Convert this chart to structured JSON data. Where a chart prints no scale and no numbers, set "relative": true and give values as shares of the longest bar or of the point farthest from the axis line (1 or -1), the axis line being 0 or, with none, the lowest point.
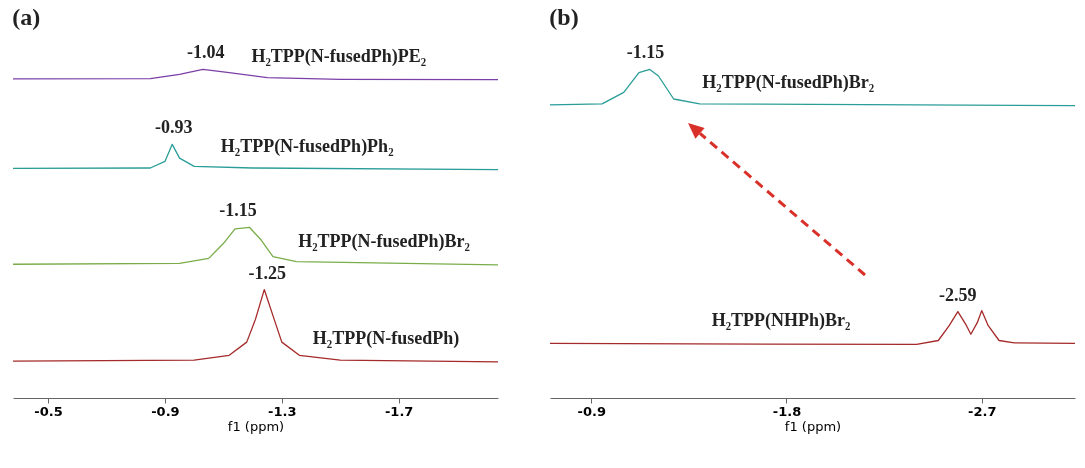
{
  "chart_data": [
    {
      "type": "line",
      "title": "(a)",
      "xlabel": "f1 (ppm)",
      "relative": true,
      "xlim": [
        -0.38,
        -2.04
      ],
      "xticks": [
        -0.5,
        -0.9,
        -1.3,
        -1.7
      ],
      "tick_labels": "x",
      "grid": false,
      "legend": false,
      "line_style": "solid",
      "marker": "none",
      "series": [
        {
          "name": "H₂TPP(N-fusedPh)PE₂",
          "color": "#7b3fa8",
          "x": [
            -0.38,
            -0.85,
            -0.95,
            -1.03,
            -1.12,
            -1.25,
            -1.5,
            -2.04
          ],
          "values": [
            0.971,
            0.972,
            0.985,
            1.0,
            0.99,
            0.975,
            0.97,
            0.969
          ]
        },
        {
          "name": "H₂TPP(N-fusedPh)Ph₂",
          "color": "#2a9d98",
          "x": [
            -0.38,
            -0.85,
            -0.9,
            -0.925,
            -0.95,
            -1.0,
            -1.2,
            -2.04
          ],
          "values": [
            0.699,
            0.7,
            0.72,
            0.772,
            0.73,
            0.705,
            0.7,
            0.695
          ]
        },
        {
          "name": "H₂TPP(N-fusedPh)Br₂",
          "color": "#7aad4a",
          "x": [
            -0.38,
            -0.95,
            -1.05,
            -1.1,
            -1.14,
            -1.19,
            -1.23,
            -1.27,
            -1.35,
            -2.04
          ],
          "values": [
            0.407,
            0.41,
            0.425,
            0.47,
            0.515,
            0.519,
            0.48,
            0.43,
            0.415,
            0.405
          ]
        },
        {
          "name": "H₂TPP(N-fusedPh)",
          "color": "#a52a2a",
          "x": [
            -0.38,
            -1.0,
            -1.12,
            -1.18,
            -1.21,
            -1.24,
            -1.27,
            -1.3,
            -1.36,
            -1.5,
            -2.04
          ],
          "values": [
            0.112,
            0.115,
            0.13,
            0.17,
            0.24,
            0.33,
            0.25,
            0.17,
            0.13,
            0.115,
            0.11
          ]
        }
      ],
      "annotations": [
        {
          "text": "-1.04",
          "x": -1.04,
          "y": 1.0
        },
        {
          "text": "-0.93",
          "x": -0.93,
          "y": 0.772
        },
        {
          "text": "-1.15",
          "x": -1.15,
          "y": 0.519
        },
        {
          "text": "-1.25",
          "x": -1.25,
          "y": 0.33
        }
      ]
    },
    {
      "type": "line",
      "title": "(b)",
      "xlabel": "f1 (ppm)",
      "relative": true,
      "xlim": [
        -0.71,
        -3.13
      ],
      "xticks": [
        -0.9,
        -1.8,
        -2.7
      ],
      "tick_labels": "x",
      "grid": false,
      "legend": false,
      "line_style": "solid",
      "marker": "none",
      "series": [
        {
          "name": "H₂TPP(N-fusedPh)Br₂",
          "color": "#2a9d98",
          "x": [
            -0.71,
            -0.95,
            -1.05,
            -1.12,
            -1.17,
            -1.21,
            -1.28,
            -1.4,
            -3.13
          ],
          "values": [
            0.892,
            0.895,
            0.93,
            0.99,
            1.0,
            0.98,
            0.91,
            0.895,
            0.89
          ]
        },
        {
          "name": "H₂TPP(NHPh)Br₂",
          "color": "#a52a2a",
          "x": [
            -0.71,
            -2.4,
            -2.5,
            -2.55,
            -2.59,
            -2.63,
            -2.65,
            -2.68,
            -2.7,
            -2.73,
            -2.78,
            -2.85,
            -3.13
          ],
          "values": [
            0.166,
            0.163,
            0.175,
            0.22,
            0.263,
            0.22,
            0.194,
            0.23,
            0.266,
            0.22,
            0.175,
            0.168,
            0.166
          ]
        }
      ],
      "annotations": [
        {
          "text": "-1.15",
          "x": -1.15,
          "y": 1.0
        },
        {
          "text": "-2.59",
          "x": -2.59,
          "y": 0.263
        }
      ]
    }
  ]
}
